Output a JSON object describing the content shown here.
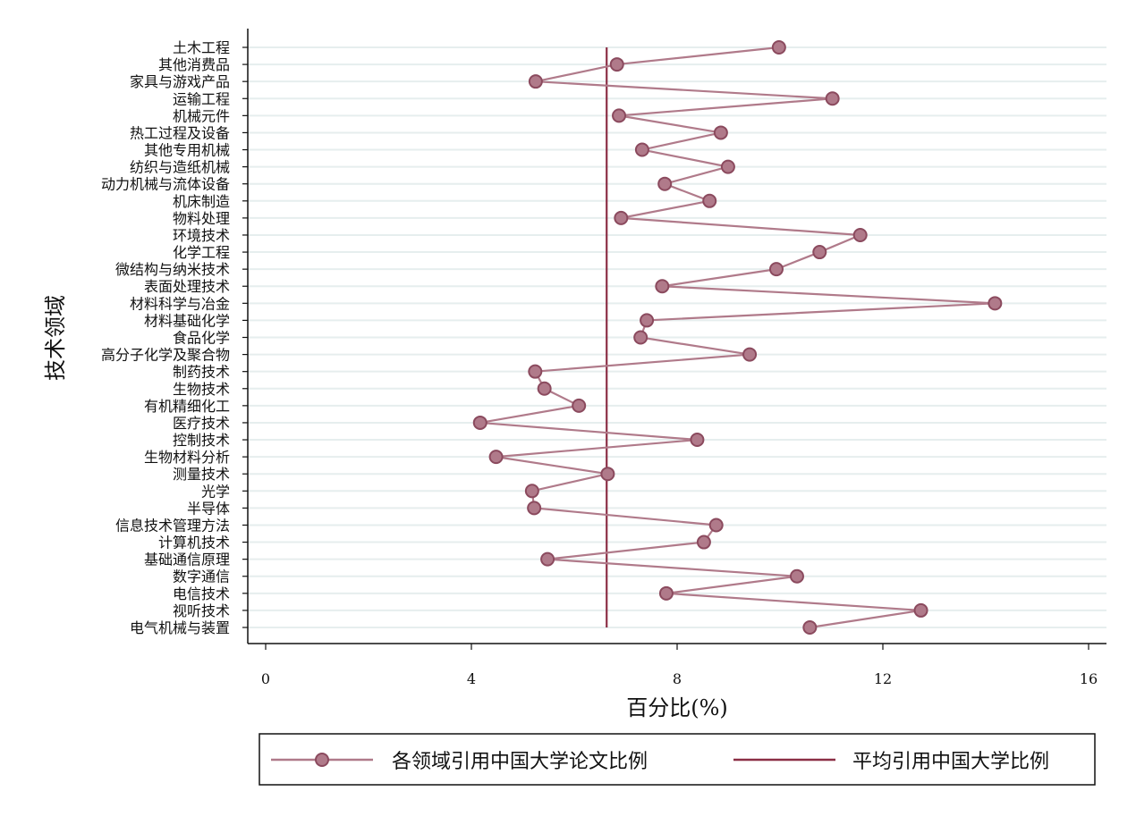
{
  "chart_data": {
    "type": "line",
    "orientation": "horizontal",
    "xlabel": "百分比(%)",
    "ylabel": "技术领域",
    "xlim": [
      0,
      16
    ],
    "xticks": [
      0,
      4,
      8,
      12,
      16
    ],
    "grid": "horizontal",
    "legend_position": "bottom",
    "categories": [
      "土木工程",
      "其他消费品",
      "家具与游戏产品",
      "运输工程",
      "机械元件",
      "热工过程及设备",
      "其他专用机械",
      "纺织与造纸机械",
      "动力机械与流体设备",
      "机床制造",
      "物料处理",
      "环境技术",
      "化学工程",
      "微结构与纳米技术",
      "表面处理技术",
      "材料科学与冶金",
      "材料基础化学",
      "食品化学",
      "高分子化学及聚合物",
      "制药技术",
      "生物技术",
      "有机精细化工",
      "医疗技术",
      "控制技术",
      "生物材料分析",
      "测量技术",
      "光学",
      "半导体",
      "信息技术管理方法",
      "计算机技术",
      "基础通信原理",
      "数字通信",
      "电信技术",
      "视听技术",
      "电气机械与装置"
    ],
    "series": [
      {
        "name": "各领域引用中国大学论文比例",
        "color": "#b07a8a",
        "values": [
          9.98,
          6.83,
          5.25,
          11.02,
          6.87,
          8.85,
          7.32,
          8.99,
          7.76,
          8.63,
          6.91,
          11.56,
          10.77,
          9.93,
          7.71,
          14.18,
          7.41,
          7.29,
          9.41,
          5.24,
          5.42,
          6.09,
          4.17,
          8.39,
          4.48,
          6.65,
          5.18,
          5.22,
          8.76,
          8.52,
          5.48,
          10.33,
          7.79,
          12.74,
          10.58
        ]
      }
    ],
    "reference_line": {
      "name": "平均引用中国大学比例",
      "color": "#8b2e45",
      "value": 6.63
    }
  }
}
